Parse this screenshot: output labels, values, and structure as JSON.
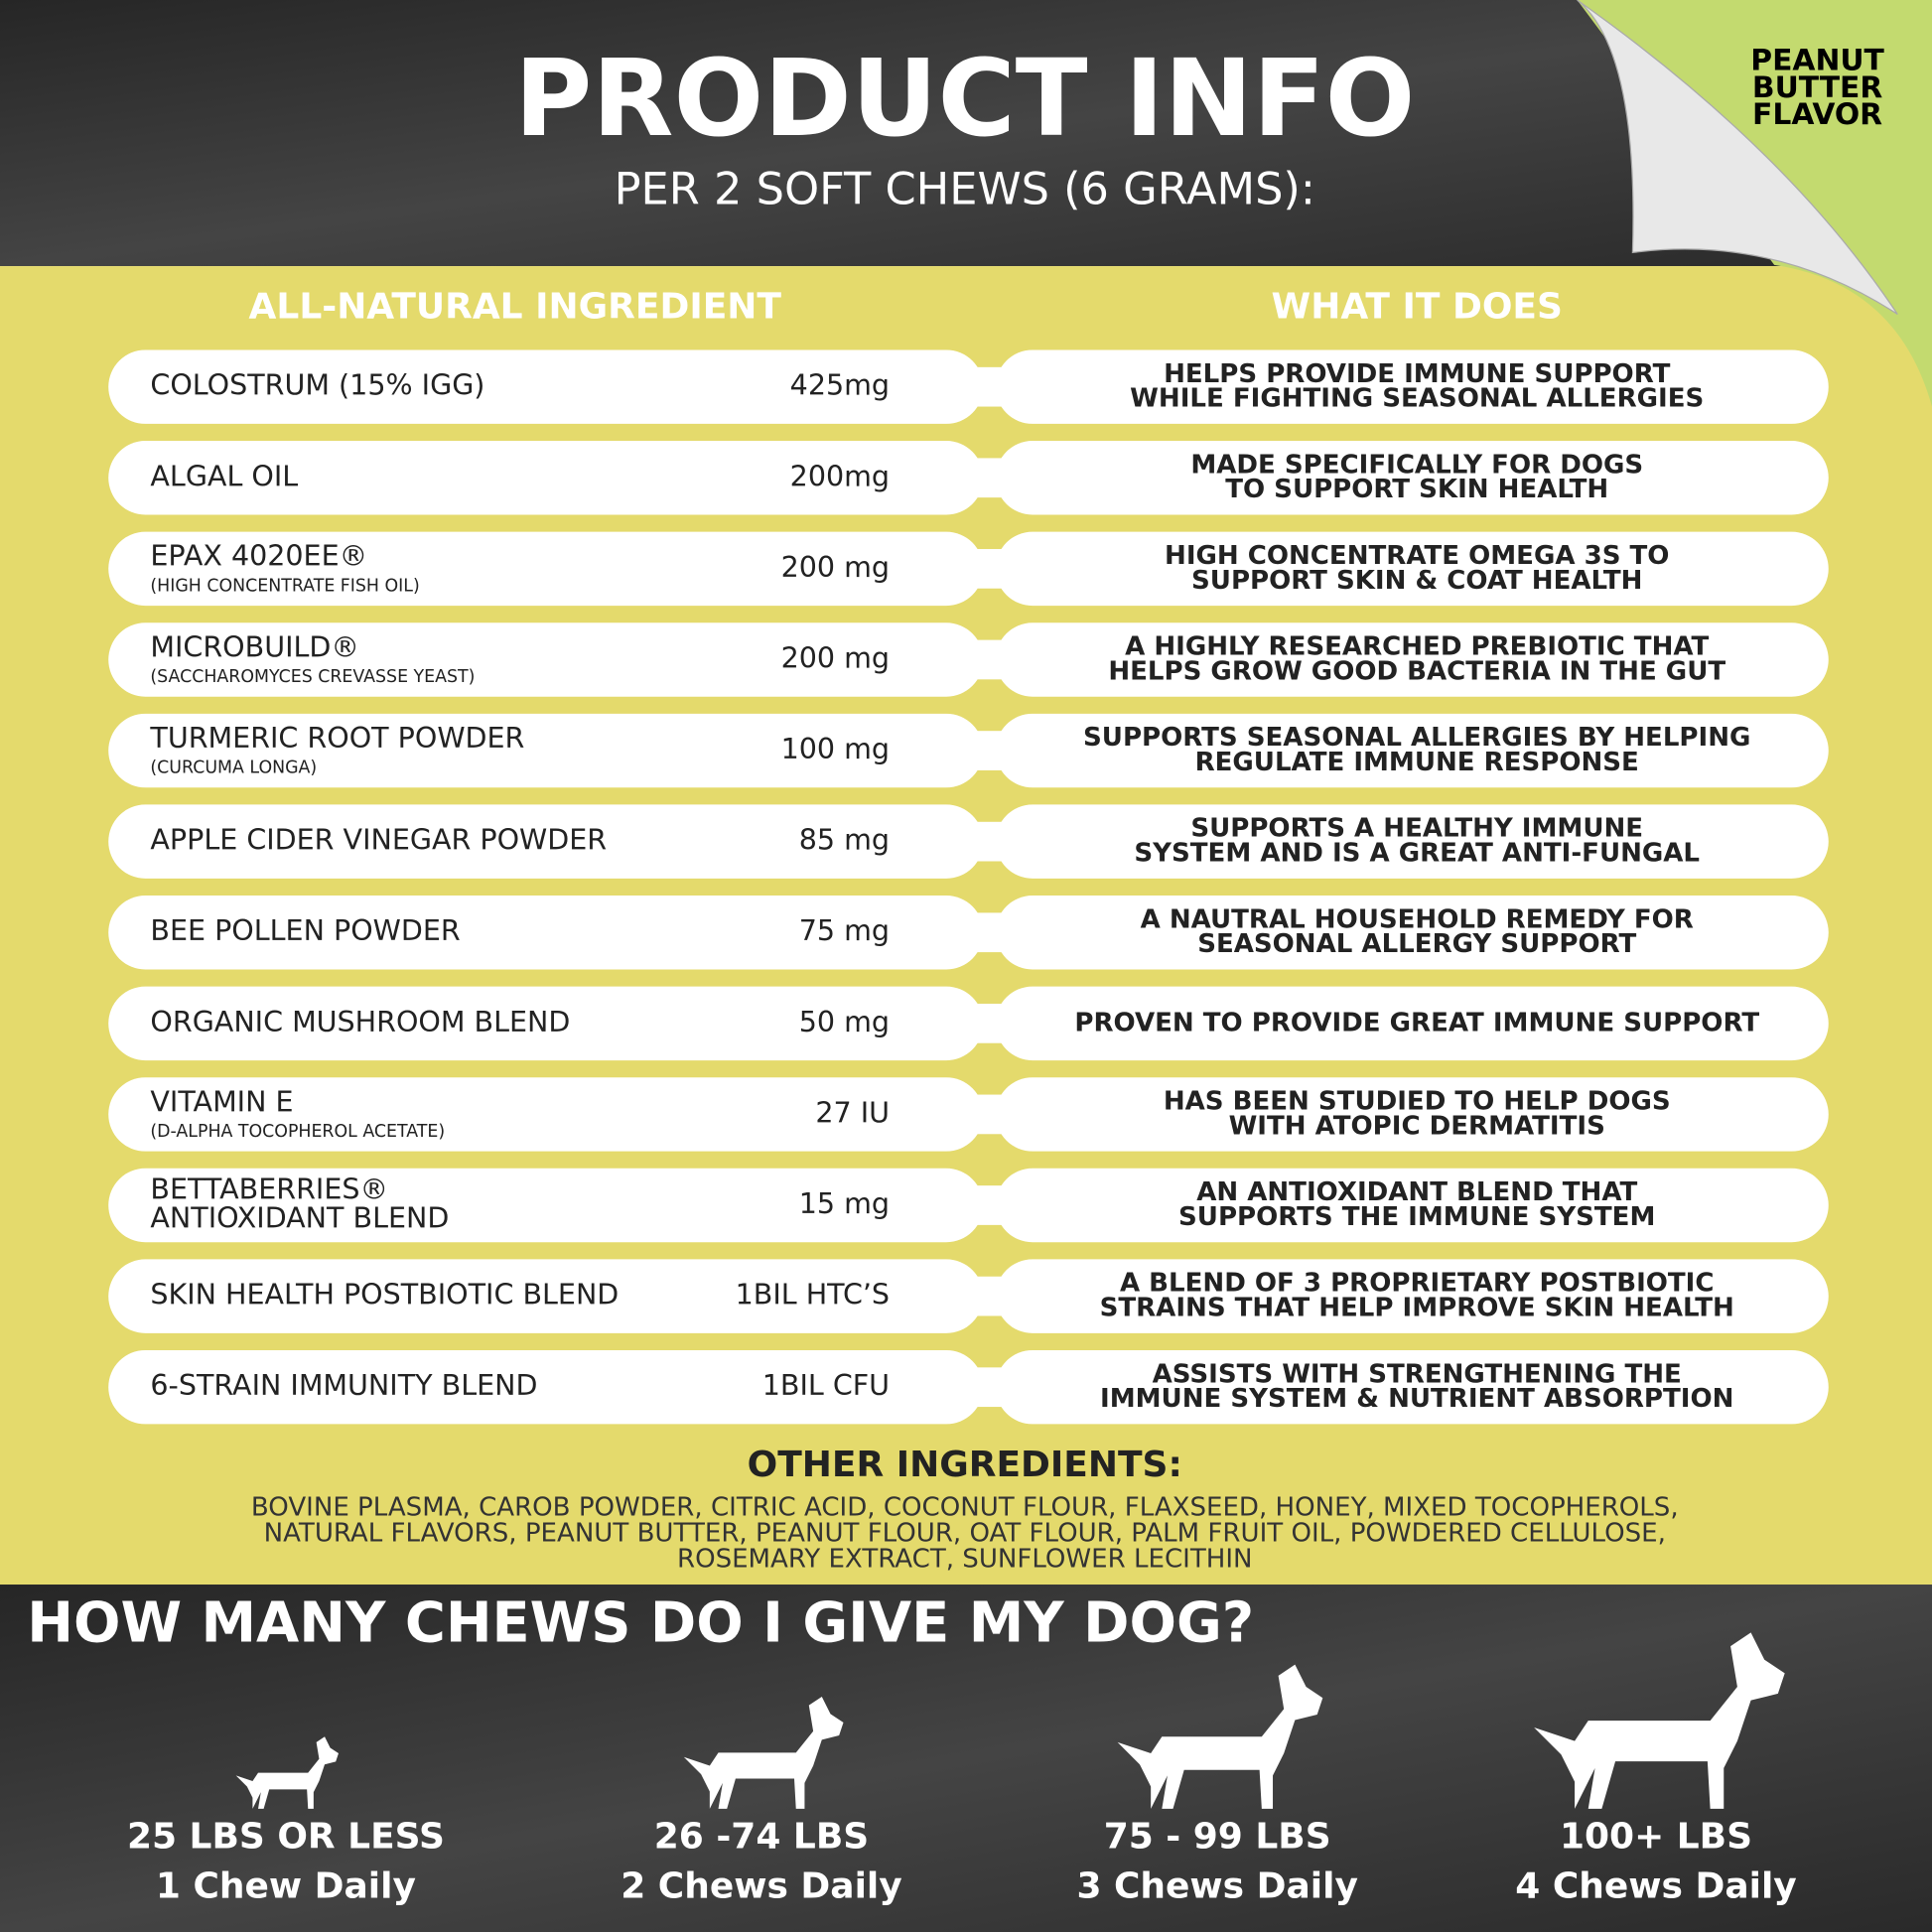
{
  "header": {
    "title": "PRODUCT INFO",
    "subtitle": "PER 2 SOFT CHEWS (6 GRAMS):"
  },
  "badge": [
    "PEANUT",
    "BUTTER",
    "FLAVOR"
  ],
  "columns": [
    "ALL-NATURAL INGREDIENT",
    "WHAT IT DOES"
  ],
  "rows": [
    {
      "name": [
        "COLOSTRUM (15% IGG)"
      ],
      "amount": "425mg",
      "does": [
        "HELPS PROVIDE IMMUNE SUPPORT",
        "WHILE FIGHTING SEASONAL ALLERGIES"
      ]
    },
    {
      "name": [
        "ALGAL OIL"
      ],
      "amount": "200mg",
      "does": [
        "MADE SPECIFICALLY FOR DOGS",
        "TO SUPPORT SKIN HEALTH"
      ]
    },
    {
      "name": [
        "EPAX 4020EE®"
      ],
      "note": "(HIGH CONCENTRATE FISH OIL)",
      "amount": "200 mg",
      "does": [
        "HIGH CONCENTRATE OMEGA 3S TO",
        "SUPPORT SKIN & COAT HEALTH"
      ]
    },
    {
      "name": [
        "MICROBUILD®"
      ],
      "note": "(SACCHAROMYCES CREVASSE YEAST)",
      "amount": "200 mg",
      "does": [
        "A HIGHLY RESEARCHED PREBIOTIC THAT",
        "HELPS GROW GOOD BACTERIA IN THE GUT"
      ]
    },
    {
      "name": [
        "TURMERIC ROOT POWDER"
      ],
      "note": "(CURCUMA LONGA)",
      "amount": "100 mg",
      "does": [
        "SUPPORTS SEASONAL ALLERGIES BY HELPING",
        "REGULATE IMMUNE RESPONSE"
      ]
    },
    {
      "name": [
        "APPLE CIDER VINEGAR POWDER"
      ],
      "amount": "85 mg",
      "does": [
        "SUPPORTS A HEALTHY IMMUNE",
        "SYSTEM AND IS A GREAT ANTI-FUNGAL"
      ]
    },
    {
      "name": [
        "BEE POLLEN POWDER"
      ],
      "amount": "75 mg",
      "does": [
        "A NAUTRAL HOUSEHOLD REMEDY FOR",
        "SEASONAL ALLERGY SUPPORT"
      ]
    },
    {
      "name": [
        "ORGANIC MUSHROOM BLEND"
      ],
      "amount": "50 mg",
      "does": [
        "PROVEN TO PROVIDE GREAT IMMUNE SUPPORT"
      ]
    },
    {
      "name": [
        "VITAMIN E"
      ],
      "note": "(D-ALPHA TOCOPHEROL ACETATE)",
      "amount": "27 IU",
      "does": [
        "HAS BEEN STUDIED TO HELP DOGS",
        "WITH ATOPIC DERMATITIS"
      ]
    },
    {
      "name": [
        "BETTABERRIES®",
        "ANTIOXIDANT BLEND"
      ],
      "amount": "15 mg",
      "does": [
        "AN ANTIOXIDANT BLEND THAT",
        "SUPPORTS THE IMMUNE SYSTEM"
      ]
    },
    {
      "name": [
        "SKIN HEALTH POSTBIOTIC BLEND"
      ],
      "amount": "1BIL HTC’S",
      "does": [
        "A BLEND OF 3 PROPRIETARY POSTBIOTIC",
        "STRAINS THAT HELP IMPROVE SKIN HEALTH"
      ]
    },
    {
      "name": [
        "6-STRAIN IMMUNITY BLEND"
      ],
      "amount": "1BIL CFU",
      "does": [
        "ASSISTS WITH STRENGTHENING THE",
        "IMMUNE SYSTEM & NUTRIENT ABSORPTION"
      ]
    }
  ],
  "other": {
    "title": "OTHER INGREDIENTS:",
    "lines": [
      "BOVINE PLASMA, CAROB POWDER, CITRIC ACID, COCONUT FLOUR, FLAXSEED, HONEY, MIXED TOCOPHEROLS,",
      "NATURAL FLAVORS, PEANUT BUTTER, PEANUT FLOUR, OAT FLOUR, PALM FRUIT OIL, POWDERED CELLULOSE,",
      "ROSEMARY EXTRACT, SUNFLOWER LECITHIN"
    ]
  },
  "dosage": {
    "title": "HOW MANY CHEWS DO I GIVE MY DOG?",
    "dogs": [
      {
        "weight": "25 LBS OR LESS",
        "chews": "1 Chew Daily"
      },
      {
        "weight": "26 -74 LBS",
        "chews": "2 Chews Daily"
      },
      {
        "weight": "75 - 99 LBS",
        "chews": "3 Chews Daily"
      },
      {
        "weight": "100+ LBS",
        "chews": "4 Chews Daily"
      }
    ]
  }
}
